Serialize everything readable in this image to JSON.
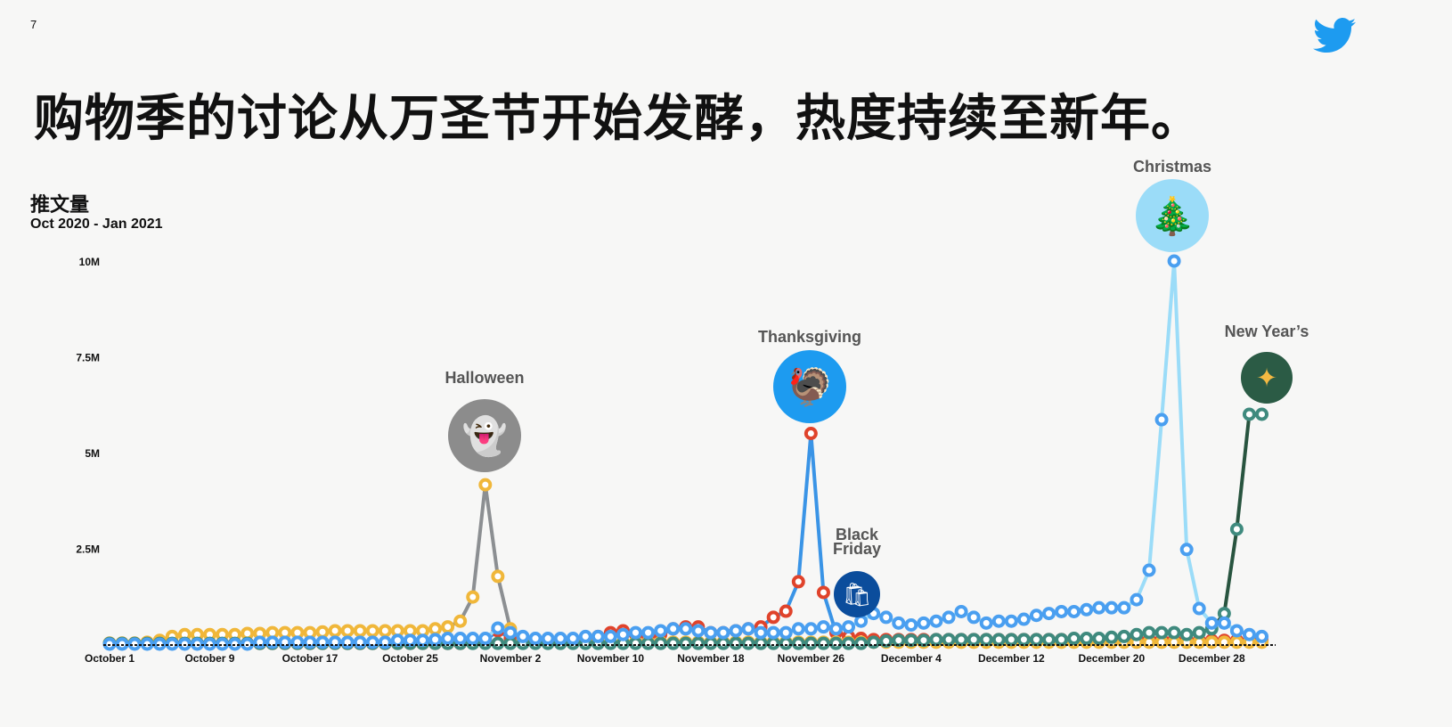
{
  "page_number": "7",
  "logo": "twitter-bird",
  "title": "购物季的讨论从万圣节开始发酵，热度持续至新年。",
  "chart_data": {
    "type": "line",
    "title": "推文量",
    "subtitle": "Oct 2020 - Jan 2021",
    "x_start": "2020-10-01",
    "x_end": "2021-01-01",
    "x_tick_labels": [
      "October 1",
      "October 9",
      "October 17",
      "October 25",
      "November 2",
      "November 10",
      "November 18",
      "November 26",
      "December 4",
      "December 12",
      "December 20",
      "December 28"
    ],
    "y_tick_labels": [
      "2.5M",
      "5M",
      "7.5M",
      "10M"
    ],
    "y_ticks": [
      2.5,
      5,
      7.5,
      10
    ],
    "ylim": [
      0,
      10
    ],
    "y_unit": "millions",
    "grid": false,
    "series": [
      {
        "key": "thanksgiving",
        "marker_color": "#e0432b",
        "line_color": "#3a94e6",
        "values": [
          0.02,
          0.02,
          0.02,
          0.02,
          0.02,
          0.02,
          0.02,
          0.02,
          0.02,
          0.02,
          0.02,
          0.02,
          0.02,
          0.02,
          0.02,
          0.02,
          0.02,
          0.02,
          0.02,
          0.02,
          0.02,
          0.02,
          0.02,
          0.02,
          0.02,
          0.02,
          0.02,
          0.02,
          0.02,
          0.05,
          0.1,
          0.35,
          0.15,
          0.1,
          0.1,
          0.1,
          0.1,
          0.1,
          0.15,
          0.2,
          0.3,
          0.35,
          0.25,
          0.2,
          0.25,
          0.4,
          0.45,
          0.45,
          0.3,
          0.3,
          0.35,
          0.4,
          0.45,
          0.7,
          0.86,
          1.63,
          5.5,
          1.35,
          0.3,
          0.2,
          0.15,
          0.12,
          0.12,
          0.12,
          0.12,
          0.12,
          0.12,
          0.12,
          0.12,
          0.12,
          0.12,
          0.12,
          0.12,
          0.12,
          0.12,
          0.12,
          0.12,
          0.12,
          0.12,
          0.12,
          0.12,
          0.12,
          0.12,
          0.12,
          0.12,
          0.12,
          0.1,
          0.1,
          0.1,
          0.1,
          0.1,
          0.1,
          0.1
        ]
      },
      {
        "key": "halloween",
        "marker_color": "#f0b73a",
        "line_color": "#8c8f92",
        "values": [
          0.03,
          0.03,
          0.03,
          0.05,
          0.1,
          0.2,
          0.25,
          0.25,
          0.25,
          0.25,
          0.25,
          0.28,
          0.28,
          0.3,
          0.3,
          0.3,
          0.3,
          0.32,
          0.35,
          0.35,
          0.35,
          0.35,
          0.35,
          0.35,
          0.35,
          0.35,
          0.4,
          0.45,
          0.6,
          1.23,
          4.16,
          1.77,
          0.4,
          0.1,
          0.05,
          0.05,
          0.05,
          0.05,
          0.05,
          0.05,
          0.05,
          0.05,
          0.05,
          0.05,
          0.05,
          0.05,
          0.05,
          0.05,
          0.05,
          0.05,
          0.05,
          0.05,
          0.05,
          0.05,
          0.05,
          0.05,
          0.05,
          0.05,
          0.05,
          0.05,
          0.05,
          0.05,
          0.05,
          0.05,
          0.05,
          0.05,
          0.05,
          0.05,
          0.05,
          0.05,
          0.05,
          0.05,
          0.05,
          0.05,
          0.05,
          0.05,
          0.05,
          0.05,
          0.05,
          0.05,
          0.05,
          0.05,
          0.05,
          0.05,
          0.05,
          0.05,
          0.05,
          0.05,
          0.05,
          0.05,
          0.05,
          0.05,
          0.05
        ]
      },
      {
        "key": "new_years",
        "marker_color": "#3f8a7e",
        "line_color": "#28543f",
        "values": [
          0.02,
          0.02,
          0.02,
          0.02,
          0.02,
          0.02,
          0.02,
          0.02,
          0.02,
          0.02,
          0.02,
          0.02,
          0.02,
          0.02,
          0.02,
          0.02,
          0.02,
          0.02,
          0.02,
          0.02,
          0.02,
          0.02,
          0.02,
          0.02,
          0.02,
          0.02,
          0.02,
          0.02,
          0.02,
          0.02,
          0.02,
          0.02,
          0.02,
          0.02,
          0.02,
          0.02,
          0.02,
          0.02,
          0.02,
          0.02,
          0.02,
          0.02,
          0.02,
          0.02,
          0.02,
          0.02,
          0.02,
          0.02,
          0.02,
          0.02,
          0.02,
          0.02,
          0.02,
          0.02,
          0.02,
          0.02,
          0.02,
          0.02,
          0.02,
          0.02,
          0.02,
          0.05,
          0.08,
          0.1,
          0.1,
          0.1,
          0.12,
          0.12,
          0.12,
          0.12,
          0.12,
          0.12,
          0.12,
          0.12,
          0.12,
          0.12,
          0.12,
          0.15,
          0.15,
          0.15,
          0.18,
          0.2,
          0.25,
          0.3,
          0.3,
          0.3,
          0.25,
          0.3,
          0.4,
          0.8,
          3.0,
          6.0,
          6.0
        ]
      },
      {
        "key": "christmas",
        "marker_color": "#4a9ff0",
        "line_color": "#9bdcf8",
        "values": [
          0.0,
          0.0,
          0.0,
          0.0,
          0.0,
          0.0,
          0.0,
          0.0,
          0.0,
          0.0,
          0.0,
          0.0,
          0.05,
          0.05,
          0.05,
          0.05,
          0.05,
          0.05,
          0.05,
          0.05,
          0.05,
          0.05,
          0.05,
          0.1,
          0.1,
          0.1,
          0.12,
          0.15,
          0.15,
          0.15,
          0.15,
          0.42,
          0.3,
          0.2,
          0.15,
          0.15,
          0.15,
          0.15,
          0.2,
          0.2,
          0.2,
          0.25,
          0.3,
          0.3,
          0.35,
          0.4,
          0.4,
          0.35,
          0.3,
          0.3,
          0.35,
          0.4,
          0.3,
          0.3,
          0.3,
          0.4,
          0.4,
          0.45,
          0.4,
          0.45,
          0.6,
          0.8,
          0.7,
          0.55,
          0.5,
          0.55,
          0.6,
          0.7,
          0.85,
          0.7,
          0.55,
          0.6,
          0.6,
          0.65,
          0.75,
          0.8,
          0.85,
          0.85,
          0.9,
          0.95,
          0.95,
          0.95,
          1.16,
          1.93,
          5.86,
          10.0,
          2.47,
          0.93,
          0.55,
          0.55,
          0.35,
          0.25,
          0.2
        ]
      }
    ],
    "annotations": [
      {
        "label": "Halloween",
        "date_index": 30,
        "icon": "ghost-icon",
        "color": "#8c8c8c"
      },
      {
        "label": "Thanksgiving",
        "date_index": 56,
        "icon": "turkey-icon",
        "color": "#1d9bf0"
      },
      {
        "label": "Black Friday",
        "date_index": 57,
        "icon": "shopping-bags-icon",
        "color": "#0b4d9c"
      },
      {
        "label": "Christmas",
        "date_index": 85,
        "icon": "christmas-tree-icon",
        "color": "#9bdcf8"
      },
      {
        "label": "New Year’s",
        "date_index": 92,
        "icon": "sparkles-icon",
        "color": "#2b5b45"
      }
    ]
  }
}
